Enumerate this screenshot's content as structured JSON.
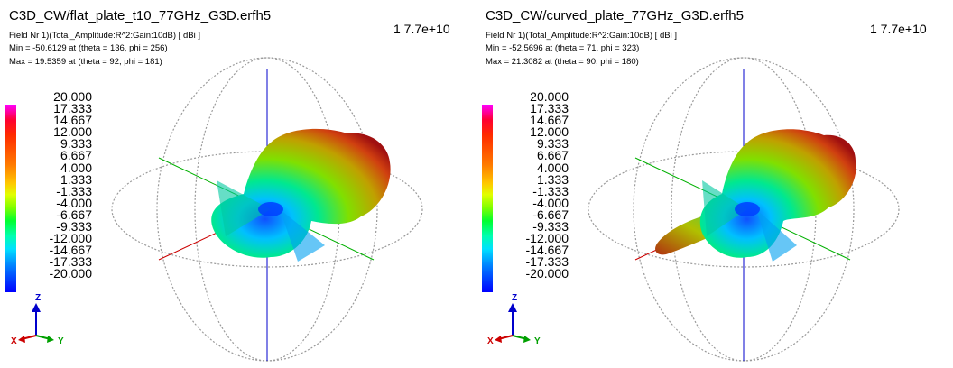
{
  "panels": [
    {
      "title": "C3D_CW/flat_plate_t10_77GHz_G3D.erfh5",
      "frequency": "1  7.7e+10",
      "field": "Field Nr 1)(Total_Amplitude:R^2:Gain:10dB) [ dBi ]",
      "min": "Min = -50.6129 at (theta = 136, phi = 256)",
      "max": "Max = 19.5359 at (theta = 92, phi = 181)"
    },
    {
      "title": "C3D_CW/curved_plate_77GHz_G3D.erfh5",
      "frequency": "1  7.7e+10",
      "field": "Field Nr 1)(Total_Amplitude:R^2:Gain:10dB) [ dBi ]",
      "min": "Min = -52.5696 at (theta = 71, phi = 323)",
      "max": "Max = 21.3082 at (theta = 90, phi = 180)"
    }
  ],
  "colorbar": [
    "20.000",
    "17.333",
    "14.667",
    "12.000",
    "9.333",
    "6.667",
    "4.000",
    "1.333",
    "-1.333",
    "-4.000",
    "-6.667",
    "-9.333",
    "-12.000",
    "-14.667",
    "-17.333",
    "-20.000"
  ],
  "axes": {
    "x": "X",
    "y": "Y",
    "z": "Z"
  },
  "colors": {
    "x_axis": "#cc0000",
    "y_axis": "#00a000",
    "z_axis": "#0000cc",
    "grid": "#9a9a9a"
  }
}
